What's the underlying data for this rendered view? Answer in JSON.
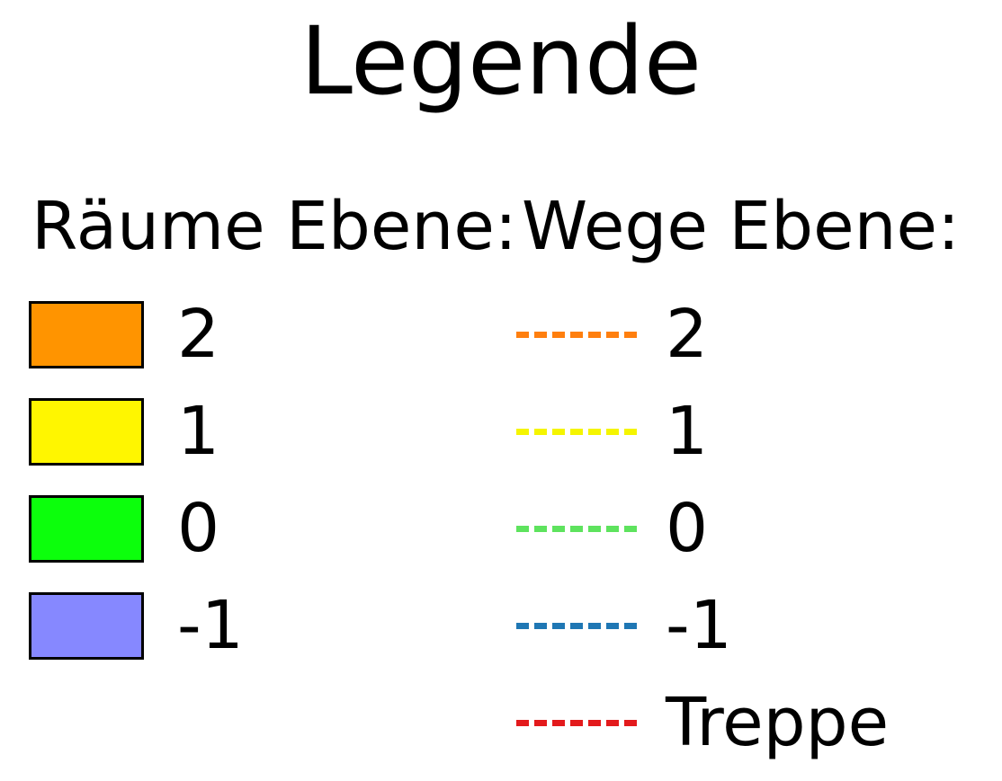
{
  "title": "Legende",
  "rooms": {
    "header": "Räume Ebene:",
    "items": [
      {
        "label": "2",
        "color": "#ff9400"
      },
      {
        "label": "1",
        "color": "#fff600"
      },
      {
        "label": "0",
        "color": "#0cff0c"
      },
      {
        "label": "-1",
        "color": "#8688ff"
      }
    ]
  },
  "paths": {
    "header": "Wege Ebene:",
    "items": [
      {
        "label": "2",
        "color": "#ff7f0e"
      },
      {
        "label": "1",
        "color": "#f5f500"
      },
      {
        "label": "0",
        "color": "#5ee35e"
      },
      {
        "label": "-1",
        "color": "#1f77b4"
      },
      {
        "label": "Treppe",
        "color": "#e31a1c"
      }
    ]
  }
}
